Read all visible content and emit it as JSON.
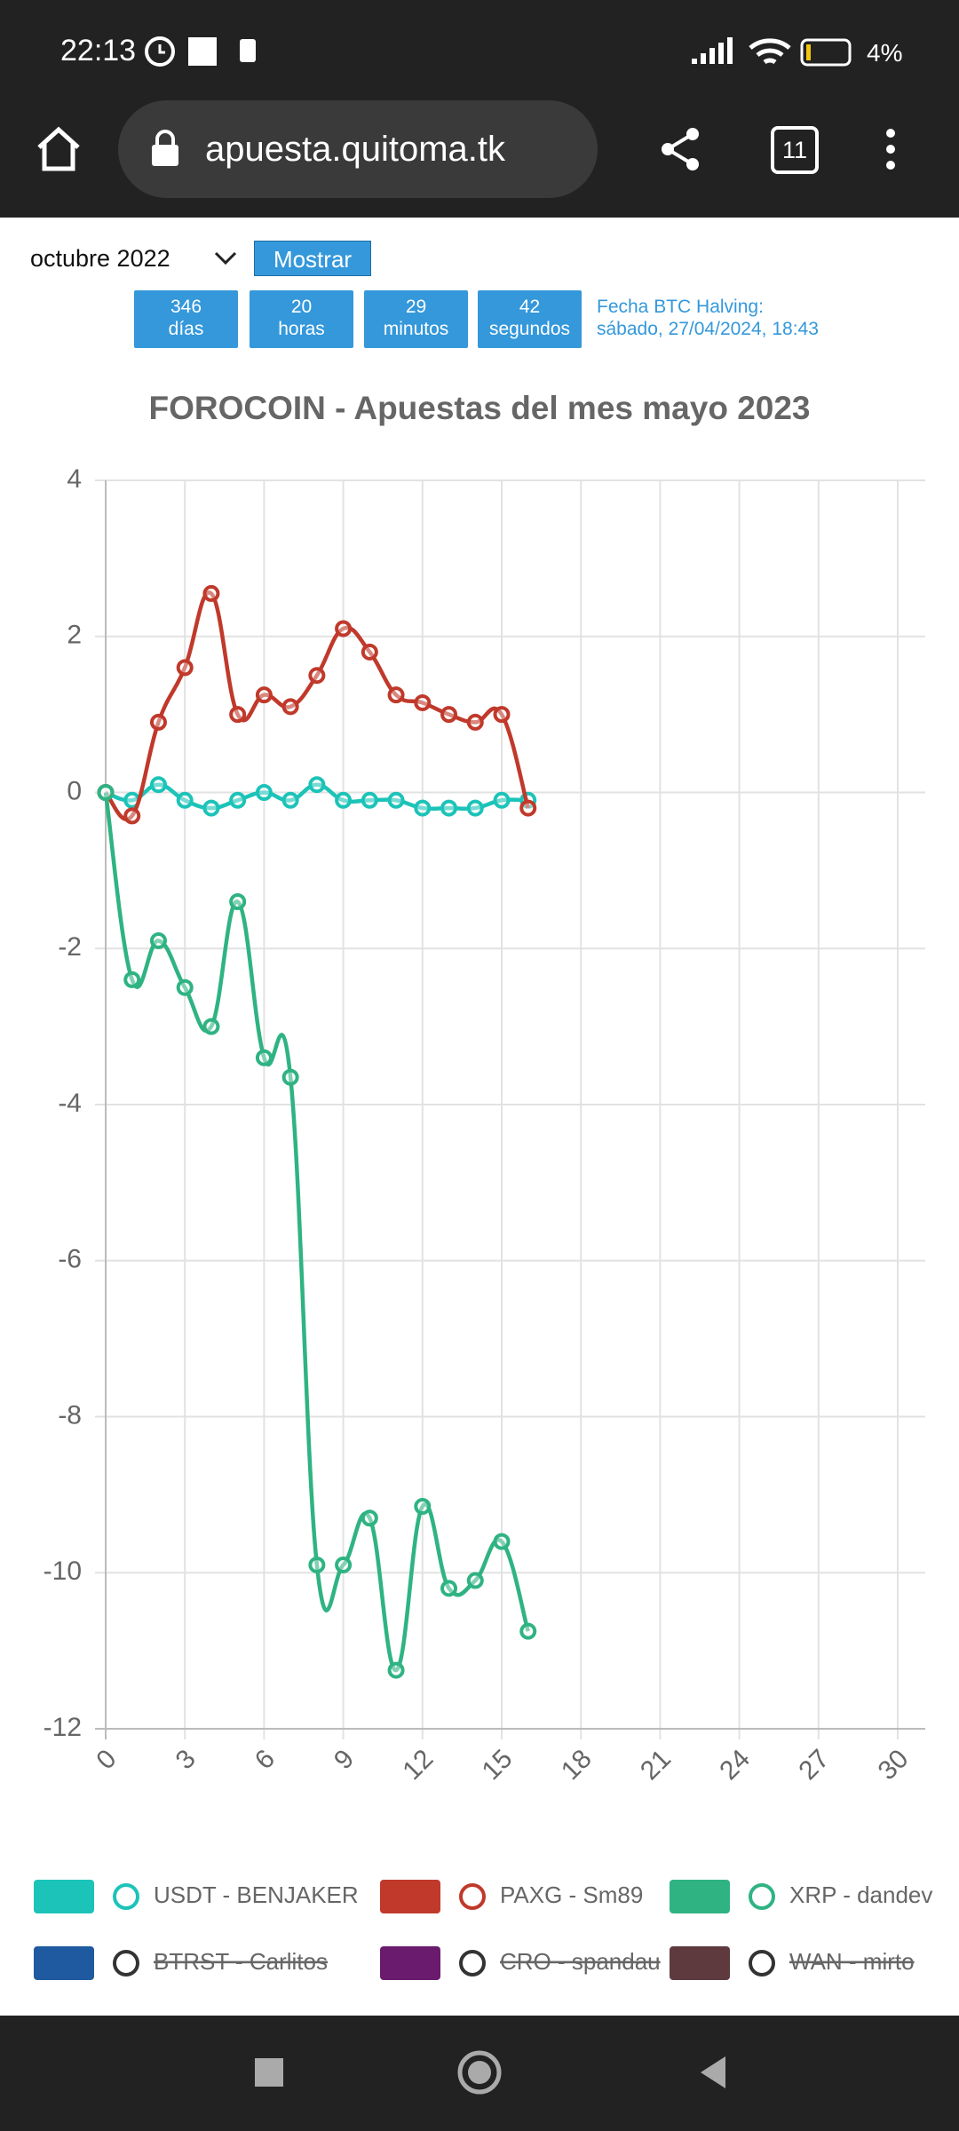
{
  "status_bar": {
    "time": "22:13",
    "battery": "4%"
  },
  "browser": {
    "url": "apuesta.quitoma.tk",
    "tab_count": 11
  },
  "controls": {
    "month_select": "octubre 2022",
    "button": "Mostrar"
  },
  "countdown": {
    "units": [
      {
        "value": 346,
        "label": "días"
      },
      {
        "value": 20,
        "label": "horas"
      },
      {
        "value": 29,
        "label": "minutos"
      },
      {
        "value": 42,
        "label": "segundos"
      }
    ],
    "halving_label": "Fecha BTC Halving:",
    "halving_date": "sábado, 27/04/2024, 18:43"
  },
  "chart_data": {
    "type": "line",
    "title": "FOROCOIN - Apuestas del mes mayo 2023",
    "x": [
      0,
      1,
      2,
      3,
      4,
      5,
      6,
      7,
      8,
      9,
      10,
      11,
      12,
      13,
      14,
      15,
      16
    ],
    "series": [
      {
        "name": "USDT - BENJAKER",
        "color": "#1cc3b8",
        "values": [
          0,
          -0.1,
          0.1,
          -0.1,
          -0.2,
          -0.1,
          0,
          -0.1,
          0.1,
          -0.1,
          -0.1,
          -0.1,
          -0.2,
          -0.2,
          -0.2,
          -0.1,
          -0.1
        ]
      },
      {
        "name": "PAXG - Sm89",
        "color": "#c0392b",
        "values": [
          0,
          -0.3,
          0.9,
          1.6,
          2.55,
          1.0,
          1.25,
          1.1,
          1.5,
          2.1,
          1.8,
          1.25,
          1.15,
          1.0,
          0.9,
          1.0,
          -0.2
        ]
      },
      {
        "name": "XRP - dandev",
        "color": "#2fb383",
        "values": [
          0,
          -2.4,
          -1.9,
          -2.5,
          -3.0,
          -1.4,
          -3.4,
          -3.65,
          -9.9,
          -9.9,
          -9.3,
          -11.25,
          -9.15,
          -10.2,
          -10.1,
          -9.6,
          -10.75
        ]
      }
    ],
    "hidden_series": [
      {
        "name": "BTRST - Carlitos",
        "color": "#1f5aa0"
      },
      {
        "name": "CRO - spandau",
        "color": "#6a1b6e"
      },
      {
        "name": "WAN - mirto",
        "color": "#5e3a3e"
      }
    ],
    "xlim": [
      0,
      30
    ],
    "xticks": [
      0,
      3,
      6,
      9,
      12,
      15,
      18,
      21,
      24,
      27,
      30
    ],
    "ylim": [
      -12,
      4
    ],
    "yticks": [
      -12,
      -10,
      -8,
      -6,
      -4,
      -2,
      0,
      2,
      4
    ],
    "grid": true
  }
}
